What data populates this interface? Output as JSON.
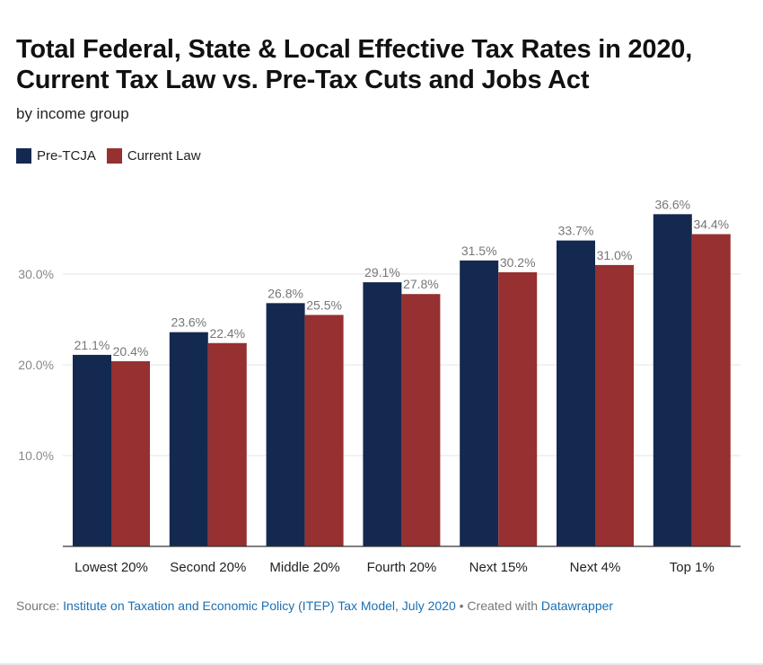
{
  "header": {
    "title": "Total Federal, State & Local Effective Tax Rates in 2020, Current Tax Law vs. Pre-Tax Cuts and Jobs Act",
    "subtitle": "by income group"
  },
  "legend": [
    {
      "label": "Pre-TCJA",
      "color": "#14294f"
    },
    {
      "label": "Current Law",
      "color": "#973030"
    }
  ],
  "chart_data": {
    "type": "bar",
    "categories": [
      "Lowest 20%",
      "Second 20%",
      "Middle 20%",
      "Fourth 20%",
      "Next 15%",
      "Next 4%",
      "Top 1%"
    ],
    "series": [
      {
        "name": "Pre-TCJA",
        "color": "#14294f",
        "values": [
          21.1,
          23.6,
          26.8,
          29.1,
          31.5,
          33.7,
          36.6
        ]
      },
      {
        "name": "Current Law",
        "color": "#973030",
        "values": [
          20.4,
          22.4,
          25.5,
          27.8,
          30.2,
          31.0,
          34.4
        ]
      }
    ],
    "ylim": [
      0,
      40
    ],
    "yticks": [
      10,
      20,
      30
    ],
    "ytick_labels": [
      "10.0%",
      "20.0%",
      "30.0%"
    ],
    "value_suffix": "%",
    "grid": true,
    "legend_position": "top-left"
  },
  "footer": {
    "source_prefix": "Source: ",
    "source_link": "Institute on Taxation and Economic Policy (ITEP) Tax Model, July 2020",
    "separator": " • Created with ",
    "tool_link": "Datawrapper"
  }
}
